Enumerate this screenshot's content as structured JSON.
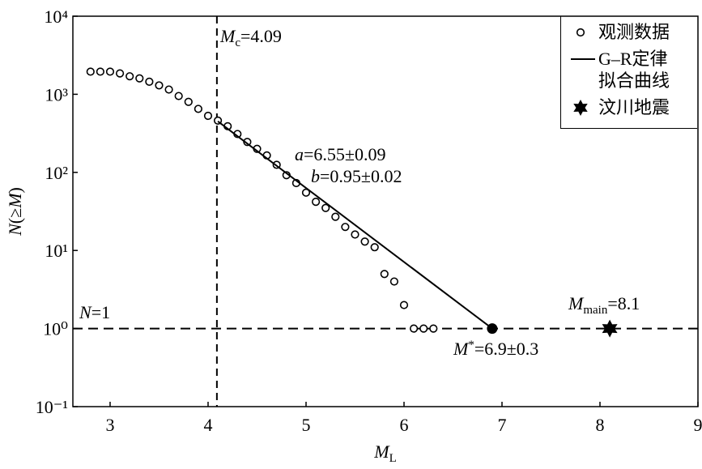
{
  "chart_data": {
    "type": "scatter",
    "xlabel": [
      {
        "t": "M",
        "style": "i"
      },
      {
        "t": "L",
        "style": "sub"
      }
    ],
    "ylabel": [
      {
        "t": "N",
        "style": "i"
      },
      {
        "t": "(≥"
      },
      {
        "t": "M",
        "style": "i"
      },
      {
        "t": ")"
      }
    ],
    "xlim": [
      2.62,
      9
    ],
    "ylim": [
      0.1,
      10000
    ],
    "log_y": true,
    "xticks": [
      3,
      4,
      5,
      6,
      7,
      8,
      9
    ],
    "yticks": [
      {
        "value": 0.1,
        "label": "10⁻¹"
      },
      {
        "value": 1,
        "label": "10⁰"
      },
      {
        "value": 10,
        "label": "10¹"
      },
      {
        "value": 100,
        "label": "10²"
      },
      {
        "value": 1000,
        "label": "10³"
      },
      {
        "value": 10000,
        "label": "10⁴"
      }
    ],
    "series": [
      {
        "name": "观测数据",
        "type": "scatter",
        "marker": "circle",
        "color": "#000000",
        "x": [
          2.8,
          2.9,
          3.0,
          3.1,
          3.2,
          3.3,
          3.4,
          3.5,
          3.6,
          3.7,
          3.8,
          3.9,
          4.0,
          4.1,
          4.2,
          4.3,
          4.4,
          4.5,
          4.6,
          4.7,
          4.8,
          4.9,
          5.0,
          5.1,
          5.2,
          5.3,
          5.4,
          5.5,
          5.6,
          5.7,
          5.8,
          5.9,
          6.0,
          6.1,
          6.2,
          6.3
        ],
        "values": [
          1950,
          1950,
          1950,
          1850,
          1700,
          1600,
          1450,
          1300,
          1150,
          950,
          800,
          650,
          530,
          460,
          390,
          310,
          245,
          200,
          165,
          125,
          92,
          73,
          55,
          42,
          35,
          27,
          20,
          16,
          13,
          11,
          5,
          4,
          2,
          1,
          1,
          1
        ]
      },
      {
        "name": "G–R定律拟合曲线",
        "type": "line",
        "color": "#000000",
        "x": [
          4.1,
          6.9
        ],
        "values": [
          450,
          1
        ]
      },
      {
        "name": "汶川地震",
        "type": "scatter",
        "marker": "star",
        "color": "#000000",
        "x": [
          8.1
        ],
        "values": [
          1
        ]
      }
    ],
    "highlight_point": {
      "x": 6.9,
      "value": 1
    },
    "vline": 4.09,
    "hline": 1,
    "annotations": [
      [
        {
          "t": "M",
          "style": "i"
        },
        {
          "t": "c",
          "style": "sub"
        },
        {
          "t": "=4.09"
        }
      ],
      [
        {
          "t": "N",
          "style": "i"
        },
        {
          "t": "=1"
        }
      ],
      [
        {
          "t": "a",
          "style": "i"
        },
        {
          "t": "=6.55±0.09"
        }
      ],
      [
        {
          "t": "b",
          "style": "i"
        },
        {
          "t": "=0.95±0.02"
        }
      ],
      [
        {
          "t": "M",
          "style": "i"
        },
        {
          "t": "*",
          "style": "sup"
        },
        {
          "t": "=6.9±0.3"
        }
      ],
      [
        {
          "t": "M",
          "style": "i"
        },
        {
          "t": "main",
          "style": "sub"
        },
        {
          "t": "=8.1"
        }
      ]
    ]
  }
}
